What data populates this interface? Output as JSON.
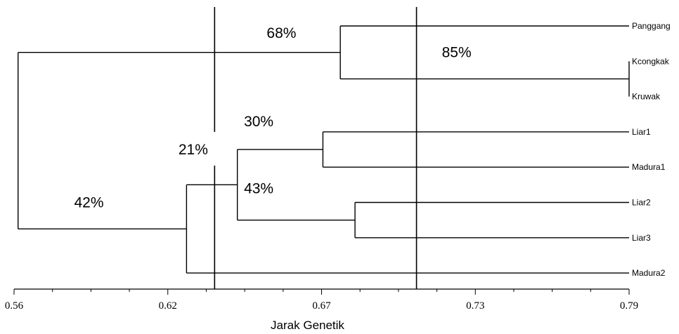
{
  "chart_data": {
    "type": "dendrogram",
    "xlabel": "Jarak Genetik",
    "xlim": [
      0.56,
      0.79
    ],
    "x_ticks": [
      {
        "value": 0.56,
        "label": "0.56"
      },
      {
        "value": 0.6175,
        "label": "0.62"
      },
      {
        "value": 0.675,
        "label": "0.67"
      },
      {
        "value": 0.7325,
        "label": "0.73"
      },
      {
        "value": 0.79,
        "label": "0.79"
      }
    ],
    "leaves": [
      "Panggang",
      "Kcongkak",
      "Kruwak",
      "Liar1",
      "Madura1",
      "Liar2",
      "Liar3",
      "Madura2"
    ],
    "clusters": [
      {
        "id": "c_kk",
        "children": [
          "Kcongkak",
          "Kruwak"
        ],
        "height": 0.79
      },
      {
        "id": "c_pkk",
        "children": [
          "Panggang",
          "c_kk"
        ],
        "height": 0.682
      },
      {
        "id": "c_lm1",
        "children": [
          "Liar1",
          "Madura1"
        ],
        "height": 0.6755
      },
      {
        "id": "c_l23",
        "children": [
          "Liar2",
          "Liar3"
        ],
        "height": 0.6875
      },
      {
        "id": "c_inner",
        "children": [
          "c_lm1",
          "c_l23"
        ],
        "height": 0.6435
      },
      {
        "id": "c_low",
        "children": [
          "c_inner",
          "Madura2"
        ],
        "height": 0.6245
      },
      {
        "id": "c_root",
        "children": [
          "c_pkk",
          "c_low"
        ],
        "height": 0.5615
      }
    ],
    "reference_lines": [
      0.635,
      0.7105
    ],
    "annotations": [
      {
        "text": "68%",
        "x": 0.66,
        "y_leaf": 0.2
      },
      {
        "text": "85%",
        "x": 0.7255,
        "y_leaf": 0.75
      },
      {
        "text": "30%",
        "x": 0.6515,
        "y_leaf": 2.7
      },
      {
        "text": "21%",
        "x": 0.627,
        "y_leaf": 3.5
      },
      {
        "text": "43%",
        "x": 0.6515,
        "y_leaf": 4.6
      },
      {
        "text": "42%",
        "x": 0.588,
        "y_leaf": 5.0
      }
    ]
  }
}
